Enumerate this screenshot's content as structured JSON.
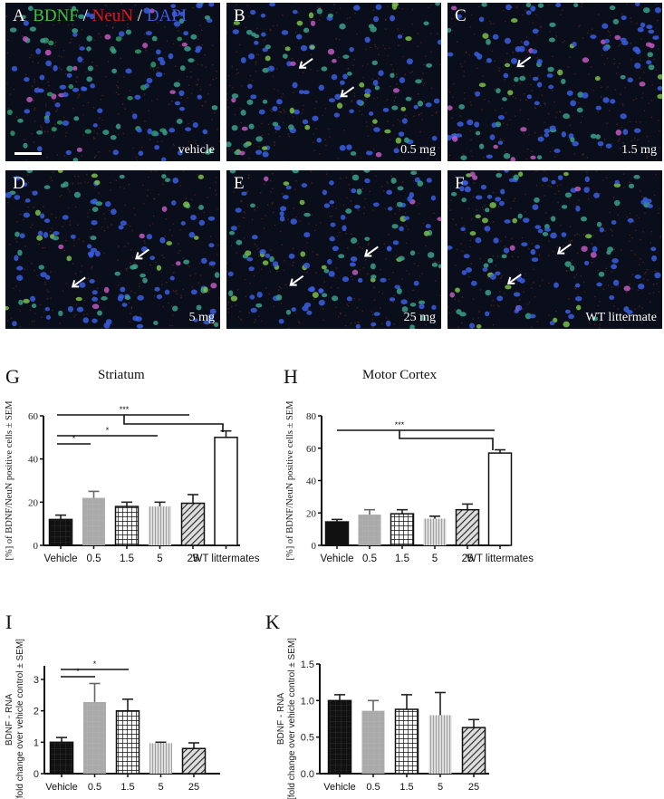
{
  "micrographs": {
    "stain_legend": {
      "part1": "BDNF",
      "sep1": " / ",
      "part2": "NeuN",
      "sep2": " / ",
      "part3": "DAPI"
    },
    "panels": [
      {
        "letter": "A",
        "condition": "vehicle",
        "scale_bar": true,
        "arrows": 0
      },
      {
        "letter": "B",
        "condition": "0.5 mg",
        "arrows": 2
      },
      {
        "letter": "C",
        "condition": "1.5 mg",
        "arrows": 1
      },
      {
        "letter": "D",
        "condition": "5 mg",
        "arrows": 2
      },
      {
        "letter": "E",
        "condition": "25 mg",
        "arrows": 2
      },
      {
        "letter": "F",
        "condition": "WT littermate",
        "arrows": 2
      }
    ],
    "colors": {
      "bdnf": "#3cc43a",
      "neun": "#e01818",
      "dapi": "#3a5ee0"
    }
  },
  "chart_data": [
    {
      "panel": "G",
      "type": "bar",
      "title": "Striatum",
      "xlabel": "",
      "ylabel": "[%] of BDNF/NeuN positive cells ± SEM",
      "categories": [
        "Vehicle",
        "0.5",
        "1.5",
        "5",
        "25",
        "WT littermates"
      ],
      "values": [
        12,
        22,
        18,
        18,
        19.5,
        50
      ],
      "errors": [
        2,
        3,
        2,
        2,
        4,
        3
      ],
      "ylim": [
        0,
        60
      ],
      "yticks": [
        0,
        20,
        40,
        60
      ],
      "patterns": [
        "black-grid",
        "gray",
        "checker",
        "vertical-lines",
        "diagonal",
        "white"
      ],
      "significance": [
        {
          "from": "Vehicle",
          "to": "0.5",
          "label": "*"
        },
        {
          "from": "Vehicle",
          "to": "5",
          "label": "*"
        },
        {
          "from": "Vehicle..25",
          "to": "WT littermates",
          "label": "***"
        }
      ]
    },
    {
      "panel": "H",
      "type": "bar",
      "title": "Motor Cortex",
      "xlabel": "",
      "ylabel": "[%] of BDNF/NeuN positive cells ± SEM",
      "categories": [
        "Vehicle",
        "0.5",
        "1.5",
        "5",
        "25",
        "WT littermates"
      ],
      "values": [
        14.5,
        19,
        19.5,
        16.5,
        22,
        57
      ],
      "errors": [
        1.5,
        3,
        2.5,
        1.5,
        3.5,
        2
      ],
      "ylim": [
        0,
        80
      ],
      "yticks": [
        0,
        20,
        40,
        60,
        80
      ],
      "patterns": [
        "black",
        "gray",
        "checker",
        "vertical-lines",
        "diagonal",
        "white"
      ],
      "significance": [
        {
          "from": "Vehicle..25",
          "to": "WT littermates",
          "label": "***"
        }
      ]
    },
    {
      "panel": "I",
      "type": "bar",
      "title": "",
      "xlabel": "",
      "ylabel": "BDNF - RNA [fold change over vehicle control ± SEM]",
      "categories": [
        "Vehicle",
        "0.5",
        "1.5",
        "5",
        "25"
      ],
      "values": [
        1.0,
        2.28,
        2.0,
        0.97,
        0.8
      ],
      "errors": [
        0.15,
        0.59,
        0.37,
        0.03,
        0.18
      ],
      "ylim": [
        0,
        3.5
      ],
      "yticks": [
        0,
        1,
        2,
        3
      ],
      "patterns": [
        "black-grid",
        "gray",
        "checker",
        "vertical-lines",
        "diagonal"
      ],
      "significance": [
        {
          "from": "Vehicle",
          "to": "0.5",
          "label": "*"
        },
        {
          "from": "Vehicle",
          "to": "1.5",
          "label": "*"
        }
      ]
    },
    {
      "panel": "K",
      "type": "bar",
      "title": "",
      "xlabel": "",
      "ylabel": "BDNF - RNA [fold change over vehicle control ± SEM]",
      "categories": [
        "Vehicle",
        "0.5",
        "1.5",
        "5",
        "25"
      ],
      "values": [
        1.0,
        0.86,
        0.88,
        0.8,
        0.63
      ],
      "errors": [
        0.08,
        0.14,
        0.2,
        0.31,
        0.11
      ],
      "ylim": [
        0,
        1.5
      ],
      "yticks": [
        "0.0",
        "0.5",
        "1.0",
        "1.5"
      ],
      "patterns": [
        "black-grid",
        "gray",
        "checker",
        "vertical-lines",
        "diagonal"
      ],
      "significance": []
    }
  ],
  "labels": {
    "G": "G",
    "H": "H",
    "I": "I",
    "K": "K",
    "striatum": "Striatum",
    "motor_cortex": "Motor Cortex"
  }
}
